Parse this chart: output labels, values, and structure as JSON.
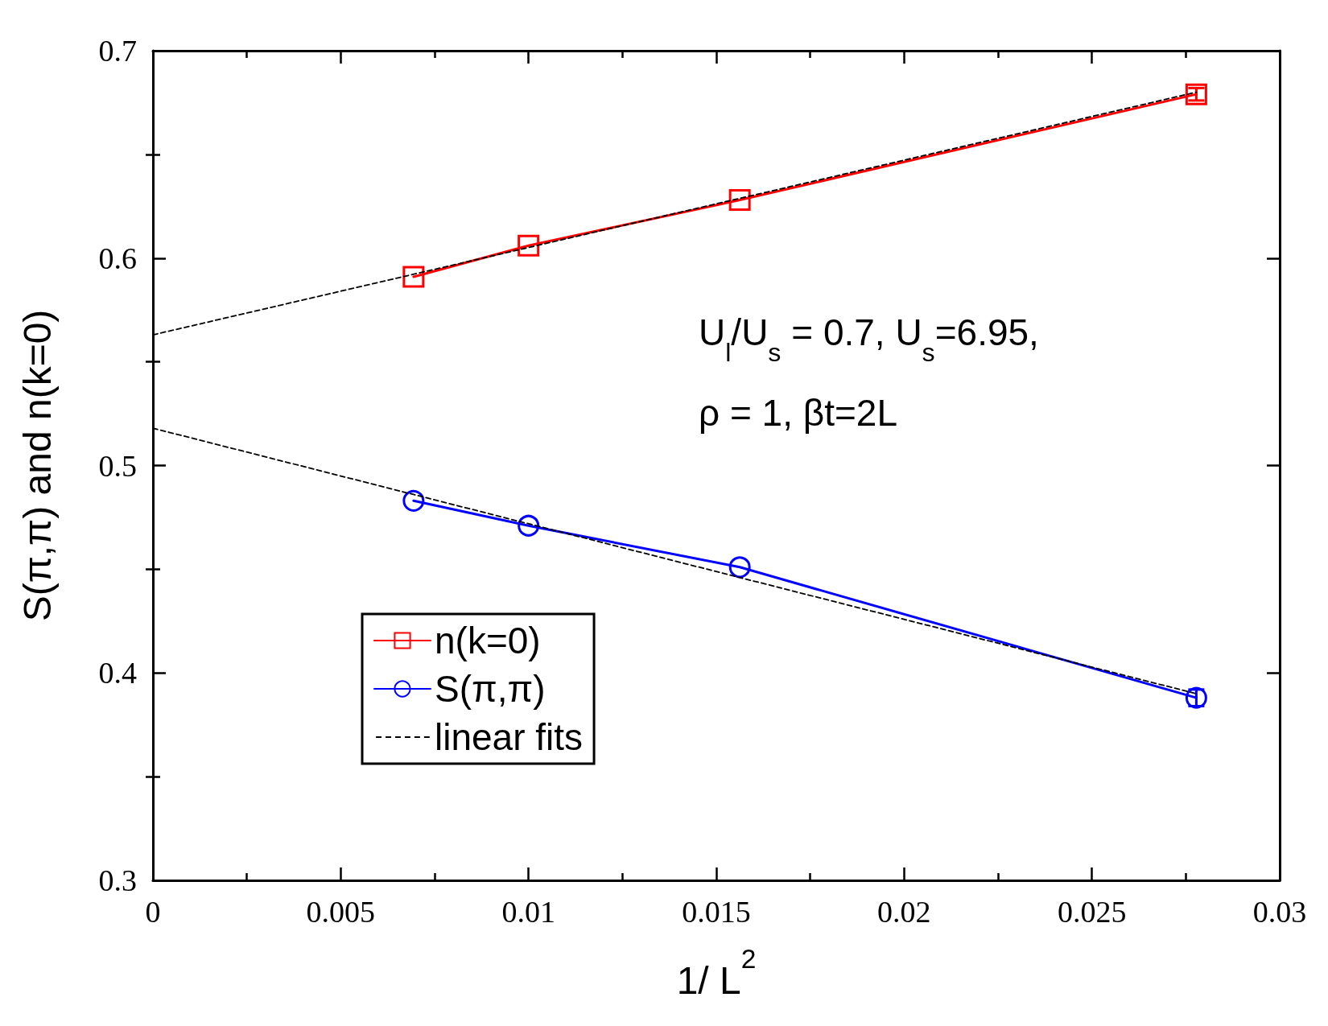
{
  "chart_data": {
    "type": "line",
    "xlabel": "1/ L$^{2}$",
    "ylabel": "S(π,π) and n(k=0)",
    "xlim": [
      0,
      0.03
    ],
    "xticks": [
      0,
      0.005,
      0.01,
      0.015,
      0.02,
      0.025,
      0.03
    ],
    "ylim": [
      0.3,
      0.7
    ],
    "yticks": [
      0.3,
      0.4,
      0.5,
      0.6,
      0.7
    ],
    "grid": false,
    "legend": "bottom left",
    "annotations": [
      "U$_{l}$/U$_{s}$ = 0.7, U$_{s}$=6.95,",
      "ρ = 1, βt=2L"
    ],
    "series": [
      {
        "name": "n(k=0)",
        "color": "#ff0000",
        "marker": "square",
        "line_style": "solid",
        "x": [
          0.00694,
          0.01,
          0.015625,
          0.02778
        ],
        "values": [
          0.591,
          0.606,
          0.628,
          0.679
        ],
        "errors": [
          null,
          null,
          null,
          0.003
        ]
      },
      {
        "name": "S(π,π)",
        "color": "#0000ff",
        "marker": "circle",
        "line_style": "solid",
        "x": [
          0.00694,
          0.01,
          0.015625,
          0.02778
        ],
        "values": [
          0.483,
          0.471,
          0.451,
          0.388
        ],
        "errors": [
          null,
          null,
          null,
          0.004
        ]
      },
      {
        "name": "linear fits",
        "color": "#000000",
        "marker": "none",
        "line_style": "dashed",
        "x": [
          0,
          0.02778
        ],
        "values": [
          0.563,
          0.68
        ]
      },
      {
        "color": "#000000",
        "marker": "none",
        "line_style": "dashed",
        "x": [
          0,
          0.02778
        ],
        "values": [
          0.518,
          0.39
        ]
      }
    ]
  }
}
